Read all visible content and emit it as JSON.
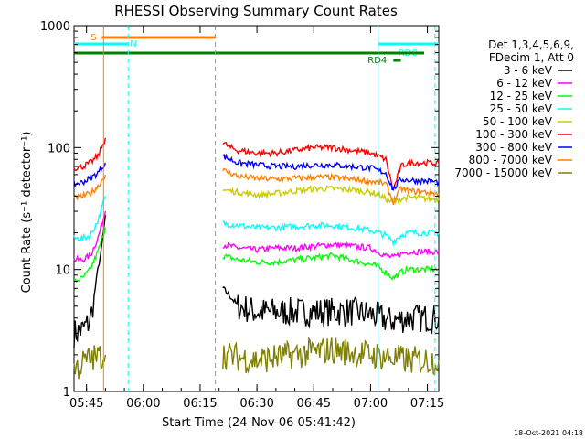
{
  "chart_data": {
    "type": "line",
    "title": "RHESSI Observing Summary Count Rates",
    "xlabel": "Start Time (24-Nov-06 05:41:42)",
    "ylabel": "Count Rate (s⁻¹ detector⁻¹)",
    "y_scale": "log",
    "ylim": [
      1,
      1000
    ],
    "xlim": [
      "05:41:42",
      "07:18:00"
    ],
    "x_ticks": [
      "05:45",
      "06:00",
      "06:15",
      "06:30",
      "06:45",
      "07:00",
      "07:15"
    ],
    "y_ticks": [
      "1",
      "10",
      "100",
      "1000"
    ],
    "grid": false,
    "legend_position": "right",
    "legend_header": [
      "Det 1,3,4,5,6,9,",
      "FDecim 1, Att 0"
    ],
    "timestamp": "18-Oct-2021 04:18",
    "series": [
      {
        "name": "3 - 6 keV",
        "color": "#000000",
        "segments": [
          {
            "x": [
              "05:41:42",
              "05:44",
              "05:46",
              "05:47",
              "05:48",
              "05:49",
              "05:50"
            ],
            "y": [
              3,
              3.2,
              3.8,
              6,
              10,
              15,
              28
            ]
          },
          {
            "x": [
              "06:21",
              "06:23",
              "06:25",
              "06:30",
              "06:35",
              "06:40",
              "06:45",
              "06:50",
              "06:55",
              "07:00",
              "07:05",
              "07:10",
              "07:15",
              "07:18"
            ],
            "y": [
              7,
              6,
              5,
              4.5,
              4.5,
              4.5,
              4.5,
              4.5,
              4.5,
              4.3,
              3.8,
              4,
              4,
              4
            ]
          }
        ]
      },
      {
        "name": "6 - 12 keV",
        "color": "#ff00ff",
        "segments": [
          {
            "x": [
              "05:41:42",
              "05:44",
              "05:46",
              "05:48",
              "05:50"
            ],
            "y": [
              12,
              12,
              13,
              18,
              30
            ]
          },
          {
            "x": [
              "06:21",
              "06:25",
              "06:30",
              "06:35",
              "06:40",
              "06:45",
              "06:50",
              "06:55",
              "07:00",
              "07:02",
              "07:04",
              "07:06",
              "07:08",
              "07:10",
              "07:15",
              "07:18"
            ],
            "y": [
              16,
              15,
              14.5,
              15,
              15,
              15.5,
              16,
              15.5,
              15,
              14,
              13,
              12.5,
              13.5,
              14,
              14,
              14
            ]
          }
        ]
      },
      {
        "name": "12 - 25 keV",
        "color": "#00ff00",
        "segments": [
          {
            "x": [
              "05:41:42",
              "05:44",
              "05:46",
              "05:48",
              "05:50"
            ],
            "y": [
              8,
              8.5,
              10,
              14,
              22
            ]
          },
          {
            "x": [
              "06:21",
              "06:25",
              "06:30",
              "06:35",
              "06:40",
              "06:45",
              "06:50",
              "06:55",
              "07:00",
              "07:02",
              "07:04",
              "07:06",
              "07:08",
              "07:10",
              "07:15",
              "07:18"
            ],
            "y": [
              13,
              12,
              11.5,
              11.5,
              12,
              12.5,
              13,
              12,
              11,
              10.5,
              9.5,
              8.5,
              9.5,
              10,
              10,
              10
            ]
          }
        ]
      },
      {
        "name": "25 - 50 keV",
        "color": "#00ffff",
        "segments": [
          {
            "x": [
              "05:41:42",
              "05:44",
              "05:46",
              "05:48",
              "05:50"
            ],
            "y": [
              18,
              18,
              19,
              25,
              40
            ]
          },
          {
            "x": [
              "06:21",
              "06:25",
              "06:30",
              "06:35",
              "06:40",
              "06:45",
              "06:50",
              "06:55",
              "07:00",
              "07:02",
              "07:04",
              "07:06",
              "07:08",
              "07:10",
              "07:15",
              "07:18"
            ],
            "y": [
              24,
              23,
              22,
              22,
              22.5,
              23,
              23,
              22,
              21,
              20,
              19,
              17,
              19,
              20,
              20,
              20
            ]
          }
        ]
      },
      {
        "name": "50 - 100 keV",
        "color": "#cccc00",
        "segments": [
          {
            "x": [
              "06:21",
              "06:25",
              "06:30",
              "06:35",
              "06:40",
              "06:45",
              "06:50",
              "06:55",
              "07:00",
              "07:02",
              "07:04",
              "07:06",
              "07:08",
              "07:10",
              "07:15",
              "07:18"
            ],
            "y": [
              45,
              43,
              41,
              42,
              44,
              46,
              46,
              45,
              43,
              41,
              38,
              35,
              38,
              39,
              38,
              38
            ]
          }
        ]
      },
      {
        "name": "100 - 300 keV",
        "color": "#ff0000",
        "segments": [
          {
            "x": [
              "05:41:42",
              "05:44",
              "05:46",
              "05:48",
              "05:49",
              "05:50"
            ],
            "y": [
              68,
              70,
              75,
              85,
              100,
              120
            ]
          },
          {
            "x": [
              "06:21",
              "06:23",
              "06:25",
              "06:30",
              "06:35",
              "06:40",
              "06:45",
              "06:50",
              "06:55",
              "07:00",
              "07:02",
              "07:04",
              "07:06",
              "07:08",
              "07:10",
              "07:15",
              "07:18"
            ],
            "y": [
              110,
              100,
              95,
              90,
              90,
              95,
              100,
              100,
              95,
              90,
              85,
              80,
              45,
              70,
              75,
              75,
              74
            ]
          }
        ]
      },
      {
        "name": "300 - 800 keV",
        "color": "#0000ff",
        "segments": [
          {
            "x": [
              "05:41:42",
              "05:44",
              "05:46",
              "05:48",
              "05:50"
            ],
            "y": [
              50,
              52,
              56,
              62,
              75
            ]
          },
          {
            "x": [
              "06:21",
              "06:23",
              "06:25",
              "06:30",
              "06:35",
              "06:40",
              "06:45",
              "06:50",
              "06:55",
              "07:00",
              "07:02",
              "07:04",
              "07:06",
              "07:08",
              "07:10",
              "07:15",
              "07:18"
            ],
            "y": [
              85,
              80,
              75,
              72,
              70,
              70,
              72,
              72,
              70,
              68,
              65,
              62,
              45,
              55,
              54,
              53,
              52
            ]
          }
        ]
      },
      {
        "name": "800 - 7000 keV",
        "color": "#ff8000",
        "segments": [
          {
            "x": [
              "05:41:42",
              "05:44",
              "05:46",
              "05:48",
              "05:50"
            ],
            "y": [
              38,
              40,
              42,
              48,
              60
            ]
          },
          {
            "x": [
              "06:21",
              "06:23",
              "06:25",
              "06:30",
              "06:35",
              "06:40",
              "06:45",
              "06:50",
              "06:55",
              "07:00",
              "07:02",
              "07:04",
              "07:06",
              "07:08",
              "07:10",
              "07:15",
              "07:18"
            ],
            "y": [
              65,
              62,
              58,
              56,
              55,
              56,
              57,
              57,
              55,
              53,
              52,
              50,
              36,
              46,
              44,
              43,
              42
            ]
          }
        ]
      },
      {
        "name": "7000 - 15000 keV",
        "color": "#808000",
        "segments": [
          {
            "x": [
              "05:41:42",
              "05:45",
              "05:50"
            ],
            "y": [
              1.5,
              1.8,
              2
            ]
          },
          {
            "x": [
              "06:21",
              "06:30",
              "06:40",
              "06:50",
              "07:00",
              "07:10",
              "07:18"
            ],
            "y": [
              2,
              1.8,
              2,
              2.2,
              2,
              1.8,
              1.8
            ]
          }
        ]
      }
    ],
    "annotations": [
      {
        "label": "S",
        "color": "#ff8000",
        "x_start": "05:49",
        "x_end": "06:19"
      },
      {
        "label": "N",
        "color": "#00ffff",
        "x_start": "05:41:42",
        "x_end": "05:56"
      },
      {
        "label": "RD0",
        "color": "#00ffff",
        "x_start": "07:02",
        "x_end": "07:18"
      },
      {
        "label": "RD4",
        "color": "#008000",
        "x_start": "07:06",
        "x_end": "07:08"
      }
    ],
    "vertical_markers": [
      {
        "x": "05:49:30",
        "color": "#ff8000",
        "style": "solid"
      },
      {
        "x": "05:56",
        "color": "#00ffff",
        "style": "dashed"
      },
      {
        "x": "06:19",
        "color": "#ff8000",
        "style": "dashed"
      },
      {
        "x": "07:02",
        "color": "#00ffff",
        "style": "solid"
      },
      {
        "x": "07:17",
        "color": "#00ffff",
        "style": "dashed"
      }
    ]
  }
}
